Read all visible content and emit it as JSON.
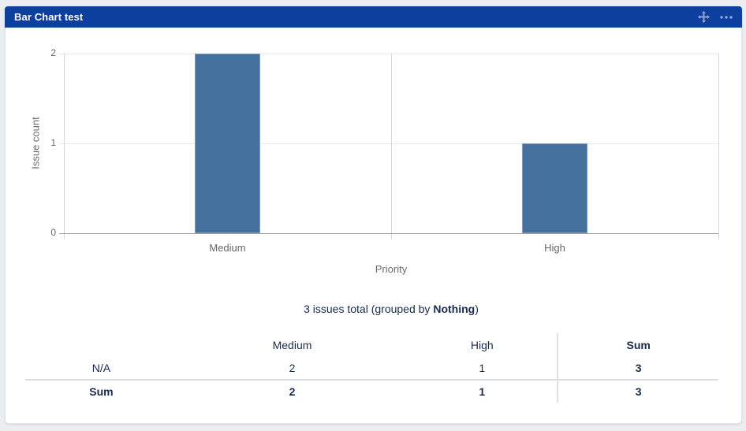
{
  "gadget": {
    "title": "Bar Chart test",
    "icons": [
      {
        "name": "move-icon"
      },
      {
        "name": "more-menu-icon"
      }
    ]
  },
  "colors": {
    "header_bg": "#0d3f9e",
    "bar": "#44709d",
    "bar_border": "#7f9cbe",
    "grid": "#e7e8ea",
    "axis_vertical": "#d4d6d9",
    "axis_zero": "#9b9fa4",
    "dark_text": "#172b4d",
    "chart_text": "#63666b"
  },
  "chart_data": {
    "type": "bar",
    "title": "",
    "categories": [
      "Medium",
      "High"
    ],
    "values": [
      2,
      1
    ],
    "xlabel": "Priority",
    "ylabel": "Issue count",
    "ylim": [
      0,
      2
    ],
    "yticks": [
      0,
      1,
      2
    ],
    "grid": true,
    "legend": false
  },
  "summary": {
    "prefix": "3 issues total (grouped by ",
    "bold": "Nothing",
    "suffix": ")"
  },
  "table": {
    "headers": [
      "",
      "Medium",
      "High",
      "Sum"
    ],
    "rows": [
      {
        "cells": [
          "N/A",
          "2",
          "1",
          "3"
        ],
        "is_total": false
      },
      {
        "cells": [
          "Sum",
          "2",
          "1",
          "3"
        ],
        "is_total": true
      }
    ]
  }
}
